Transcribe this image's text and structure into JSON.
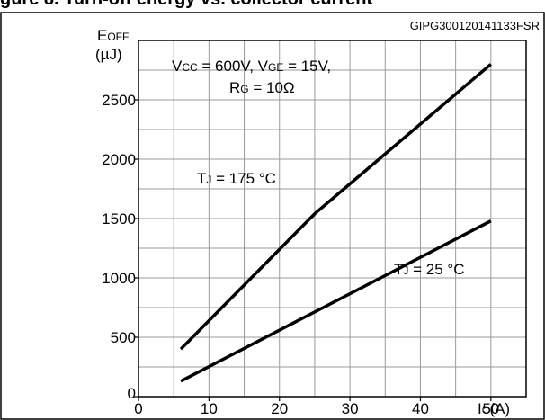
{
  "page_title": "gure 8. Turn-off energy vs. collector current",
  "chart_data": {
    "type": "line",
    "figure_code": "GIPG300120141133FSR",
    "xlabel": "I",
    "xlabel_sub": "C",
    "xlabel_unit": "(A)",
    "ylabel": "E",
    "ylabel_sub": "OFF",
    "ylabel_unit": "(µJ)",
    "xlim": [
      0,
      55
    ],
    "ylim": [
      0,
      3000
    ],
    "x_ticks": [
      "0",
      "10",
      "20",
      "30",
      "40",
      "50"
    ],
    "y_ticks": [
      "0",
      "500",
      "1000",
      "1500",
      "2000",
      "2500"
    ],
    "grid": true,
    "conditions": {
      "line1": {
        "p1": "V",
        "p1_sub": "CC",
        "p1_rest": " = 600V, V",
        "p2_sub": "GE",
        "p2_rest": " = 15V,"
      },
      "line2": {
        "p1": "R",
        "p1_sub": "G",
        "p1_rest": " = 10Ω"
      }
    },
    "series": [
      {
        "label": "T",
        "label_sub": "J",
        "label_rest": " = 175 °C",
        "x": [
          6,
          25,
          50
        ],
        "y": [
          400,
          1540,
          2800
        ]
      },
      {
        "label": "T",
        "label_sub": "J",
        "label_rest": " = 25 °C",
        "x": [
          6,
          50
        ],
        "y": [
          130,
          1480
        ]
      }
    ]
  }
}
